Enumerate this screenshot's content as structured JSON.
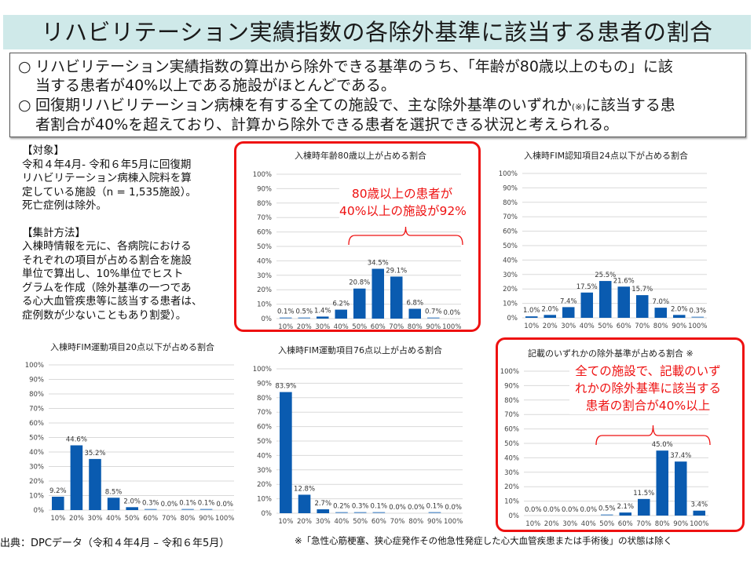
{
  "header": {
    "title": "リハビリテーション実績指数の各除外基準に該当する患者の割合"
  },
  "summary": {
    "bullet_symbol": "○",
    "items": [
      {
        "line1": "リハビリテーション実績指数の算出から除外できる基準のうち、「年齢が80歳以上のもの」に該",
        "line2": "当する患者が40%以上である施設がほとんどである。"
      },
      {
        "line1_a": "回復期リハビリテーション病棟を有する全ての施設で、主な除外基準のいずれか",
        "line1_note": "(※)",
        "line1_b": "に該当する患",
        "line2": "者割合が40%を超えており、計算から除外できる患者を選択できる状況と考えられる。"
      }
    ]
  },
  "sidebar": {
    "target_heading": "【対象】",
    "target_lines": [
      "令和４年4月- 令和６年5月に回復期",
      "リハビリテーション病棟入院料を算",
      "定している施設（n = 1,535施設）。",
      "死亡症例は除外。"
    ],
    "method_heading": "【集計方法】",
    "method_lines": [
      "入棟時情報を元に、各病院における",
      "それぞれの項目が占める割合を施設",
      "単位で算出し、10%単位でヒスト",
      "グラムを作成（除外基準の一つであ",
      "る心大血管疾患等に該当する患者は、",
      "症例数が少ないこともあり割愛）。"
    ]
  },
  "colors": {
    "bar": "#0a5bb0",
    "bar_light": "#6f9fd0",
    "highlight_border": "#ee1111",
    "annotation": "#ee1111",
    "gridline": "#d9d9d9",
    "banner": "#cfe9e9"
  },
  "chart_data": [
    {
      "id": "age80",
      "type": "bar",
      "title": "入棟時年齢80歳以上が占める割合",
      "highlighted": true,
      "annotation": [
        "80歳以上の患者が",
        "40%以上の施設が92%"
      ],
      "brace_range": [
        "50%",
        "100%"
      ],
      "categories": [
        "10%",
        "20%",
        "30%",
        "40%",
        "50%",
        "60%",
        "70%",
        "80%",
        "90%",
        "100%"
      ],
      "values": [
        0.1,
        0.5,
        1.4,
        6.2,
        20.8,
        34.5,
        29.1,
        6.8,
        0.7,
        0.0
      ],
      "labels": [
        "0.1%",
        "0.5%",
        "1.4%",
        "6.2%",
        "20.8%",
        "34.5%",
        "29.1%",
        "6.8%",
        "0.7%",
        "0.0%"
      ],
      "yticks": [
        "0%",
        "10%",
        "20%",
        "30%",
        "40%",
        "50%",
        "60%",
        "70%",
        "80%",
        "90%",
        "100%"
      ],
      "ylim": [
        0,
        100
      ],
      "xlabel": "",
      "ylabel": "",
      "grid": true
    },
    {
      "id": "fim-cog24",
      "type": "bar",
      "title": "入棟時FIM認知項目24点以下が占める割合",
      "highlighted": false,
      "categories": [
        "10%",
        "20%",
        "30%",
        "40%",
        "50%",
        "60%",
        "70%",
        "80%",
        "90%",
        "100%"
      ],
      "values": [
        1.0,
        2.0,
        7.4,
        17.5,
        25.5,
        21.6,
        15.7,
        7.0,
        2.0,
        0.3
      ],
      "labels": [
        "1.0%",
        "2.0%",
        "7.4%",
        "17.5%",
        "25.5%",
        "21.6%",
        "15.7%",
        "7.0%",
        "2.0%",
        "0.3%"
      ],
      "yticks": [
        "0%",
        "10%",
        "20%",
        "30%",
        "40%",
        "50%",
        "60%",
        "70%",
        "80%",
        "90%",
        "100%"
      ],
      "ylim": [
        0,
        100
      ],
      "xlabel": "",
      "ylabel": "",
      "grid": true
    },
    {
      "id": "fim-motor20",
      "type": "bar",
      "title": "入棟時FIM運動項目20点以下が占める割合",
      "highlighted": false,
      "categories": [
        "10%",
        "20%",
        "30%",
        "40%",
        "50%",
        "60%",
        "70%",
        "80%",
        "90%",
        "100%"
      ],
      "values": [
        9.2,
        44.6,
        35.2,
        8.5,
        2.0,
        0.3,
        0.0,
        0.1,
        0.1,
        0.0
      ],
      "labels": [
        "9.2%",
        "44.6%",
        "35.2%",
        "8.5%",
        "2.0%",
        "0.3%",
        "0.0%",
        "0.1%",
        "0.1%",
        "0.0%"
      ],
      "yticks": [
        "0%",
        "10%",
        "20%",
        "30%",
        "40%",
        "50%",
        "60%",
        "70%",
        "80%",
        "90%",
        "100%"
      ],
      "ylim": [
        0,
        100
      ],
      "xlabel": "",
      "ylabel": "",
      "grid": true
    },
    {
      "id": "fim-motor76",
      "type": "bar",
      "title": "入棟時FIM運動項目76点以上が占める割合",
      "highlighted": false,
      "categories": [
        "10%",
        "20%",
        "30%",
        "40%",
        "50%",
        "60%",
        "70%",
        "80%",
        "90%",
        "100%"
      ],
      "values": [
        83.9,
        12.8,
        2.7,
        0.2,
        0.3,
        0.1,
        0.0,
        0.0,
        0.1,
        0.0
      ],
      "labels": [
        "83.9%",
        "12.8%",
        "2.7%",
        "0.2%",
        "0.3%",
        "0.1%",
        "0.0%",
        "0.0%",
        "0.1%",
        "0.0%"
      ],
      "yticks": [
        "0%",
        "10%",
        "20%",
        "30%",
        "40%",
        "50%",
        "60%",
        "70%",
        "80%",
        "90%",
        "100%"
      ],
      "ylim": [
        0,
        100
      ],
      "xlabel": "",
      "ylabel": "",
      "grid": true
    },
    {
      "id": "any-exclusion",
      "type": "bar",
      "title": "記載のいずれかの除外基準が占める割合 ※",
      "highlighted": true,
      "annotation": [
        "全ての施設で、記載のいず",
        "れかの除外基準に該当する",
        "患者の割合が40%以上"
      ],
      "brace_range": [
        "50%",
        "100%"
      ],
      "categories": [
        "10%",
        "20%",
        "30%",
        "40%",
        "50%",
        "60%",
        "70%",
        "80%",
        "90%",
        "100%"
      ],
      "values": [
        0.0,
        0.0,
        0.0,
        0.0,
        0.5,
        2.1,
        11.5,
        45.0,
        37.4,
        3.4
      ],
      "labels": [
        "0.0%",
        "0.0%",
        "0.0%",
        "0.0%",
        "0.5%",
        "2.1%",
        "11.5%",
        "45.0%",
        "37.4%",
        "3.4%"
      ],
      "yticks": [
        "0%",
        "10%",
        "20%",
        "30%",
        "40%",
        "50%",
        "60%",
        "70%",
        "80%",
        "90%",
        "100%"
      ],
      "ylim": [
        0,
        100
      ],
      "xlabel": "",
      "ylabel": "",
      "grid": true
    }
  ],
  "footer": {
    "source": "出典：DPCデータ（令和４年4月 – 令和６年5月）",
    "note": "※「急性心筋梗塞、狭心症発作その他急性発症した心大血管疾患または手術後」の状態は除く"
  }
}
